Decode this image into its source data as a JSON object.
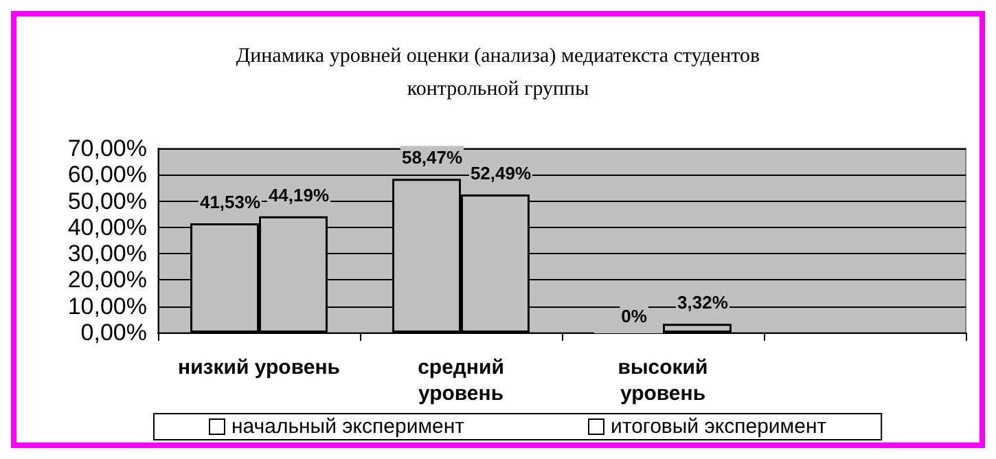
{
  "chart_data": {
    "type": "bar",
    "title": "Динамика уровней оценки (анализа) медиатекста студентов\nконтрольной группы",
    "categories": [
      "низкий уровень",
      "средний\nуровень",
      "высокий\nуровень",
      null
    ],
    "series": [
      {
        "name": "начальный эксперимент",
        "color": "#c0c0c0",
        "values": [
          41.53,
          58.47,
          0,
          null
        ],
        "value_labels": [
          "41,53%",
          "58,47%",
          "0%",
          null
        ]
      },
      {
        "name": "итоговый эксперимент",
        "color": "#c0c0c0",
        "values": [
          44.19,
          52.49,
          3.32,
          null
        ],
        "value_labels": [
          "44,19%",
          "52,49%",
          "3,32%",
          null
        ]
      }
    ],
    "ylim": [
      0,
      70
    ],
    "yticks": [
      {
        "value": 0,
        "label": "0,00%"
      },
      {
        "value": 10,
        "label": "10,00%"
      },
      {
        "value": 20,
        "label": "20,00%"
      },
      {
        "value": 30,
        "label": "30,00%"
      },
      {
        "value": 40,
        "label": "40,00%"
      },
      {
        "value": 50,
        "label": "50,00%"
      },
      {
        "value": 60,
        "label": "60,00%"
      },
      {
        "value": 70,
        "label": "70,00%"
      }
    ],
    "grid": "y",
    "legend": "bottom"
  }
}
